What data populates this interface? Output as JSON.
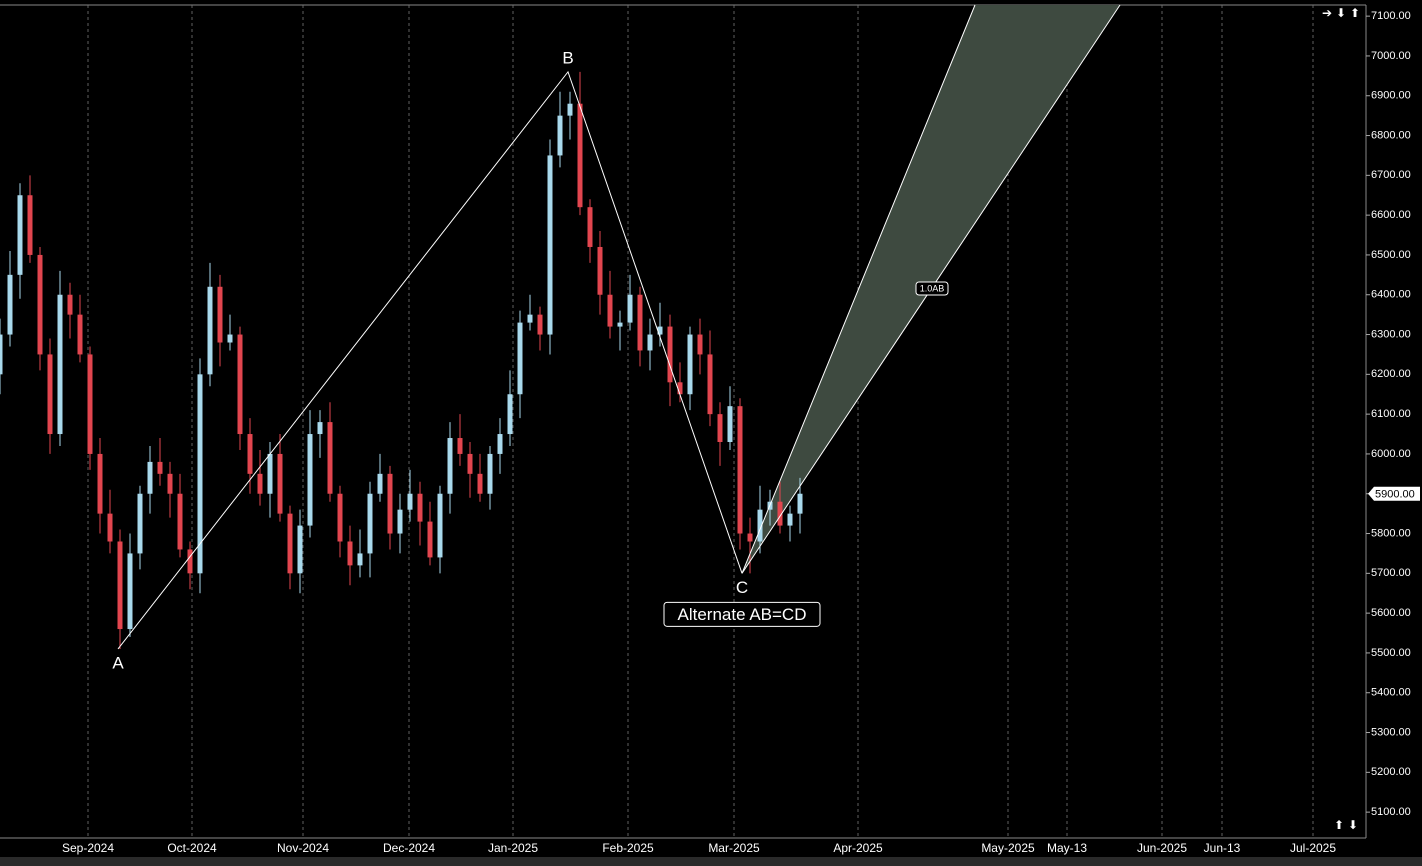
{
  "chart_data": {
    "type": "candlestick",
    "x": [
      0,
      2,
      4,
      6,
      8,
      10,
      12,
      14,
      16,
      18,
      20,
      22,
      24,
      26,
      28,
      30,
      32,
      34,
      36,
      38,
      40,
      42,
      44,
      46,
      48,
      50,
      52,
      54,
      56,
      58,
      60,
      62,
      64,
      66,
      68,
      70,
      72,
      74,
      76,
      78,
      80,
      82,
      84,
      86,
      88,
      90,
      92,
      94,
      96,
      98,
      100,
      102,
      104,
      106,
      108,
      110,
      112,
      114,
      116,
      118,
      120,
      122,
      124,
      126,
      128,
      130,
      132,
      134,
      136,
      138,
      140,
      142,
      144,
      146,
      148,
      150,
      152,
      154,
      156,
      158,
      160
    ],
    "open": [
      6200,
      6300,
      6450,
      6650,
      6500,
      6250,
      6050,
      6400,
      6350,
      6250,
      6000,
      5850,
      5780,
      5560,
      5750,
      5900,
      5980,
      5950,
      5900,
      5760,
      5700,
      6200,
      6420,
      6280,
      6300,
      6050,
      5950,
      5900,
      6000,
      5850,
      5700,
      5820,
      6050,
      6080,
      5900,
      5780,
      5720,
      5750,
      5900,
      5950,
      5800,
      5860,
      5900,
      5830,
      5740,
      5900,
      6040,
      6000,
      5950,
      5900,
      6000,
      6050,
      6150,
      6330,
      6350,
      6300,
      6750,
      6850,
      6880,
      6620,
      6520,
      6400,
      6320,
      6330,
      6400,
      6260,
      6300,
      6320,
      6180,
      6150,
      6300,
      6250,
      6100,
      6030,
      6120,
      5800,
      5780,
      5860,
      5880,
      5820,
      5850
    ],
    "high": [
      6340,
      6510,
      6680,
      6700,
      6520,
      6290,
      6460,
      6430,
      6400,
      6270,
      6040,
      5910,
      5810,
      5800,
      5920,
      6020,
      6040,
      5980,
      5950,
      5780,
      6240,
      6480,
      6450,
      6350,
      6320,
      6090,
      6010,
      6030,
      6050,
      5870,
      5860,
      6110,
      6110,
      6130,
      5920,
      5820,
      5810,
      5930,
      6000,
      5970,
      5900,
      5960,
      5930,
      5880,
      5920,
      6080,
      6100,
      6030,
      6000,
      6020,
      6090,
      6210,
      6360,
      6400,
      6370,
      6790,
      6910,
      6910,
      6960,
      6640,
      6560,
      6460,
      6360,
      6450,
      6420,
      6340,
      6380,
      6350,
      6230,
      6320,
      6340,
      6310,
      6130,
      6170,
      6140,
      5840,
      5920,
      5910,
      5930,
      5870,
      5940
    ],
    "low": [
      6150,
      6270,
      6390,
      6480,
      6210,
      6000,
      6020,
      6290,
      6230,
      5960,
      5800,
      5750,
      5510,
      5540,
      5710,
      5850,
      5920,
      5840,
      5740,
      5660,
      5650,
      6170,
      6220,
      6260,
      6010,
      5900,
      5870,
      5840,
      5830,
      5660,
      5650,
      5790,
      5990,
      5880,
      5740,
      5670,
      5690,
      5690,
      5880,
      5760,
      5750,
      5830,
      5770,
      5720,
      5700,
      5850,
      5970,
      5890,
      5880,
      5860,
      5950,
      6020,
      6090,
      6310,
      6260,
      6250,
      6720,
      6790,
      6600,
      6480,
      6350,
      6290,
      6260,
      6310,
      6220,
      6210,
      6270,
      6120,
      6130,
      6110,
      6200,
      6070,
      5970,
      6010,
      5760,
      5700,
      5750,
      5820,
      5800,
      5780,
      5800
    ],
    "close": [
      6300,
      6450,
      6650,
      6500,
      6250,
      6050,
      6400,
      6350,
      6250,
      6000,
      5850,
      5780,
      5560,
      5750,
      5900,
      5980,
      5950,
      5900,
      5760,
      5700,
      6200,
      6420,
      6280,
      6300,
      6050,
      5950,
      5900,
      6000,
      5850,
      5700,
      5820,
      6050,
      6080,
      5900,
      5780,
      5720,
      5750,
      5900,
      5950,
      5800,
      5860,
      5900,
      5830,
      5740,
      5900,
      6040,
      6000,
      5950,
      5900,
      6000,
      6050,
      6150,
      6330,
      6350,
      6300,
      6750,
      6850,
      6880,
      6620,
      6520,
      6400,
      6320,
      6330,
      6400,
      6260,
      6300,
      6320,
      6180,
      6150,
      6300,
      6250,
      6100,
      6030,
      6120,
      5800,
      5780,
      5860,
      5880,
      5820,
      5850,
      5900
    ],
    "up_color": "#a9d9ec",
    "down_color": "#e2464f",
    "xlim": [
      0,
      273.2
    ],
    "ylim": [
      5035,
      7128
    ],
    "xticks": [
      {
        "value": 17.6,
        "label": "Sep-2024"
      },
      {
        "value": 38.4,
        "label": "Oct-2024"
      },
      {
        "value": 60.6,
        "label": "Nov-2024"
      },
      {
        "value": 81.8,
        "label": "Dec-2024"
      },
      {
        "value": 102.6,
        "label": "Jan-2025"
      },
      {
        "value": 125.6,
        "label": "Feb-2025"
      },
      {
        "value": 146.8,
        "label": "Mar-2025"
      },
      {
        "value": 171.6,
        "label": "Apr-2025"
      },
      {
        "value": 201.6,
        "label": "May-2025"
      },
      {
        "value": 213.4,
        "label": "May-13"
      },
      {
        "value": 232.4,
        "label": "Jun-2025"
      },
      {
        "value": 244.4,
        "label": "Jun-13"
      },
      {
        "value": 262.6,
        "label": "Jul-2025"
      }
    ],
    "yticks": [
      {
        "value": 5100,
        "label": "5100.00"
      },
      {
        "value": 5200,
        "label": "5200.00"
      },
      {
        "value": 5300,
        "label": "5300.00"
      },
      {
        "value": 5400,
        "label": "5400.00"
      },
      {
        "value": 5500,
        "label": "5500.00"
      },
      {
        "value": 5600,
        "label": "5600.00"
      },
      {
        "value": 5700,
        "label": "5700.00"
      },
      {
        "value": 5800,
        "label": "5800.00"
      },
      {
        "value": 5900,
        "label": "5900.00"
      },
      {
        "value": 6000,
        "label": "6000.00"
      },
      {
        "value": 6100,
        "label": "6100.00"
      },
      {
        "value": 6200,
        "label": "6200.00"
      },
      {
        "value": 6300,
        "label": "6300.00"
      },
      {
        "value": 6400,
        "label": "6400.00"
      },
      {
        "value": 6500,
        "label": "6500.00"
      },
      {
        "value": 6600,
        "label": "6600.00"
      },
      {
        "value": 6700,
        "label": "6700.00"
      },
      {
        "value": 6800,
        "label": "6800.00"
      },
      {
        "value": 6900,
        "label": "6900.00"
      },
      {
        "value": 7000,
        "label": "7000.00"
      },
      {
        "value": 7100,
        "label": "7100.00"
      }
    ],
    "grid": true,
    "last_price": {
      "value": 5900,
      "label": "5900.00"
    },
    "pattern": {
      "points": [
        {
          "label": "A",
          "x": 23.6,
          "y": 5510
        },
        {
          "label": "B",
          "x": 113.6,
          "y": 6960
        },
        {
          "label": "C",
          "x": 148.4,
          "y": 5700
        }
      ],
      "projection": [
        {
          "x": 195,
          "y": 7128
        },
        {
          "x": 224,
          "y": 7128
        }
      ],
      "name": "Alternate AB=CD",
      "ratio_label": "1.0AB",
      "ratio_at": {
        "x": 186.4,
        "y": 6417
      }
    }
  }
}
